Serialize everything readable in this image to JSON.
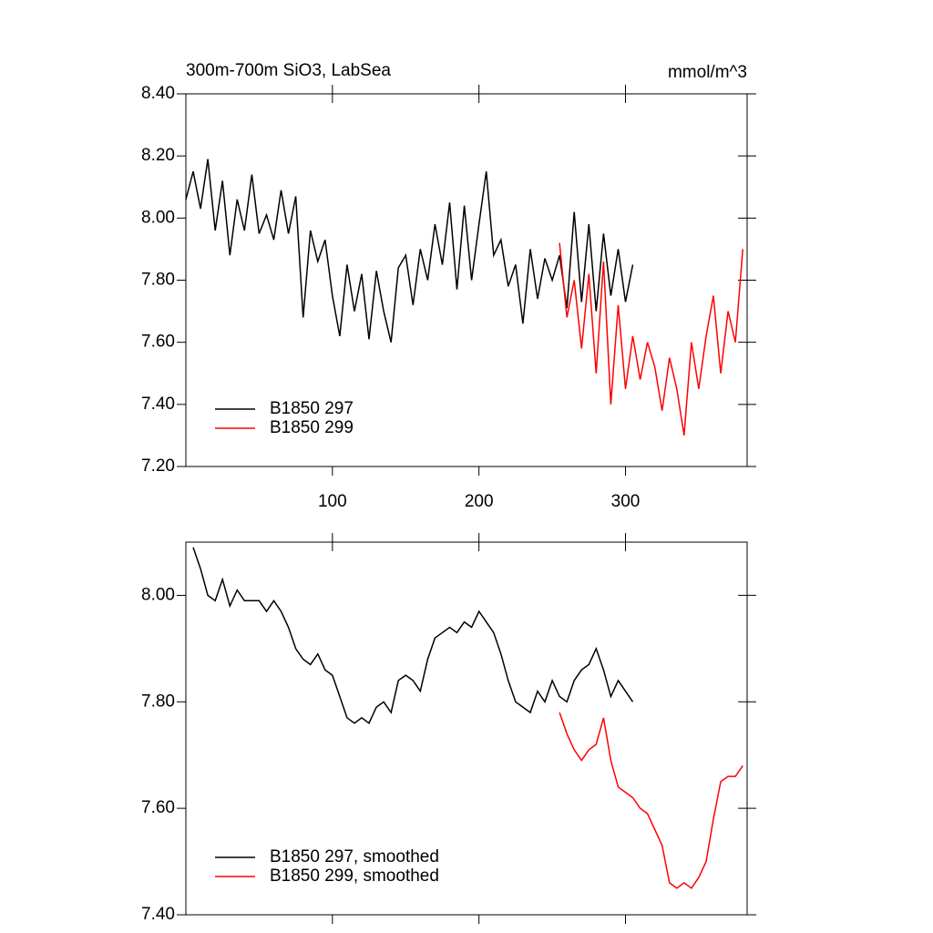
{
  "chart_data": [
    {
      "type": "line",
      "title": "300m-700m SiO3, LabSea",
      "units": "mmol/m^3",
      "x": [
        0,
        5,
        10,
        15,
        20,
        25,
        30,
        35,
        40,
        45,
        50,
        55,
        60,
        65,
        70,
        75,
        80,
        85,
        90,
        95,
        100,
        105,
        110,
        115,
        120,
        125,
        130,
        135,
        140,
        145,
        150,
        155,
        160,
        165,
        170,
        175,
        180,
        185,
        190,
        195,
        200,
        205,
        210,
        215,
        220,
        225,
        230,
        235,
        240,
        245,
        250,
        255,
        260,
        265,
        270,
        275,
        280,
        285,
        290,
        295,
        300,
        305,
        310,
        315,
        320,
        325,
        330,
        335,
        340,
        345,
        350,
        355,
        360,
        365,
        370,
        375,
        380
      ],
      "series": [
        {
          "name": "B1850 297",
          "color": "#000000",
          "values": [
            8.06,
            8.15,
            8.03,
            8.19,
            7.96,
            8.12,
            7.88,
            8.06,
            7.96,
            8.14,
            7.95,
            8.01,
            7.93,
            8.09,
            7.95,
            8.07,
            7.68,
            7.96,
            7.86,
            7.93,
            7.75,
            7.62,
            7.85,
            7.7,
            7.82,
            7.61,
            7.83,
            7.7,
            7.6,
            7.84,
            7.88,
            7.72,
            7.9,
            7.8,
            7.98,
            7.85,
            8.05,
            7.77,
            8.04,
            7.8,
            7.98,
            8.15,
            7.88,
            7.93,
            7.78,
            7.85,
            7.66,
            7.9,
            7.74,
            7.87,
            7.8,
            7.88,
            7.71,
            8.02,
            7.73,
            7.98,
            7.7,
            7.95,
            7.75,
            7.9,
            7.73,
            7.85,
            null,
            null,
            null,
            null,
            null,
            null,
            null,
            null,
            null,
            null,
            null,
            null,
            null,
            null,
            null
          ]
        },
        {
          "name": "B1850 299",
          "color": "#ff0000",
          "values": [
            null,
            null,
            null,
            null,
            null,
            null,
            null,
            null,
            null,
            null,
            null,
            null,
            null,
            null,
            null,
            null,
            null,
            null,
            null,
            null,
            null,
            null,
            null,
            null,
            null,
            null,
            null,
            null,
            null,
            null,
            null,
            null,
            null,
            null,
            null,
            null,
            null,
            null,
            null,
            null,
            null,
            null,
            null,
            null,
            null,
            null,
            null,
            null,
            null,
            null,
            null,
            7.92,
            7.68,
            7.8,
            7.58,
            7.82,
            7.5,
            7.86,
            7.4,
            7.72,
            7.45,
            7.62,
            7.48,
            7.6,
            7.52,
            7.38,
            7.55,
            7.45,
            7.3,
            7.6,
            7.45,
            7.62,
            7.75,
            7.5,
            7.7,
            7.6,
            7.9
          ]
        }
      ],
      "xlim": [
        0,
        383
      ],
      "xticks": [
        100,
        200,
        300
      ],
      "xtick_labels": true,
      "ylim": [
        7.2,
        8.4
      ],
      "yticks": [
        {
          "value": 7.2,
          "label": "7.20"
        },
        {
          "value": 7.4,
          "label": "7.40"
        },
        {
          "value": 7.6,
          "label": "7.60"
        },
        {
          "value": 7.8,
          "label": "7.80"
        },
        {
          "value": 8.0,
          "label": "8.00"
        },
        {
          "value": 8.2,
          "label": "8.20"
        },
        {
          "value": 8.4,
          "label": "8.40"
        }
      ],
      "legend": "lower left"
    },
    {
      "type": "line",
      "x": [
        0,
        5,
        10,
        15,
        20,
        25,
        30,
        35,
        40,
        45,
        50,
        55,
        60,
        65,
        70,
        75,
        80,
        85,
        90,
        95,
        100,
        105,
        110,
        115,
        120,
        125,
        130,
        135,
        140,
        145,
        150,
        155,
        160,
        165,
        170,
        175,
        180,
        185,
        190,
        195,
        200,
        205,
        210,
        215,
        220,
        225,
        230,
        235,
        240,
        245,
        250,
        255,
        260,
        265,
        270,
        275,
        280,
        285,
        290,
        295,
        300,
        305,
        310,
        315,
        320,
        325,
        330,
        335,
        340,
        345,
        350,
        355,
        360,
        365,
        370,
        375,
        380
      ],
      "series": [
        {
          "name": "B1850 297, smoothed",
          "color": "#000000",
          "values": [
            null,
            8.09,
            8.05,
            8.0,
            7.99,
            8.03,
            7.98,
            8.01,
            7.99,
            7.99,
            7.99,
            7.97,
            7.99,
            7.97,
            7.94,
            7.9,
            7.88,
            7.87,
            7.89,
            7.86,
            7.85,
            7.81,
            7.77,
            7.76,
            7.77,
            7.76,
            7.79,
            7.8,
            7.78,
            7.84,
            7.85,
            7.84,
            7.82,
            7.88,
            7.92,
            7.93,
            7.94,
            7.93,
            7.95,
            7.94,
            7.97,
            7.95,
            7.93,
            7.89,
            7.84,
            7.8,
            7.79,
            7.78,
            7.82,
            7.8,
            7.84,
            7.81,
            7.8,
            7.84,
            7.86,
            7.87,
            7.9,
            7.86,
            7.81,
            7.84,
            7.82,
            7.8,
            null,
            null,
            null,
            null,
            null,
            null,
            null,
            null,
            null,
            null,
            null,
            null,
            null,
            null,
            null
          ]
        },
        {
          "name": "B1850 299, smoothed",
          "color": "#ff0000",
          "values": [
            null,
            null,
            null,
            null,
            null,
            null,
            null,
            null,
            null,
            null,
            null,
            null,
            null,
            null,
            null,
            null,
            null,
            null,
            null,
            null,
            null,
            null,
            null,
            null,
            null,
            null,
            null,
            null,
            null,
            null,
            null,
            null,
            null,
            null,
            null,
            null,
            null,
            null,
            null,
            null,
            null,
            null,
            null,
            null,
            null,
            null,
            null,
            null,
            null,
            null,
            null,
            7.78,
            7.74,
            7.71,
            7.69,
            7.71,
            7.72,
            7.77,
            7.69,
            7.64,
            7.63,
            7.62,
            7.6,
            7.59,
            7.56,
            7.53,
            7.46,
            7.45,
            7.46,
            7.45,
            7.47,
            7.5,
            7.58,
            7.65,
            7.66,
            7.66,
            7.68
          ]
        }
      ],
      "xlim": [
        0,
        383
      ],
      "xticks": [
        100,
        200,
        300
      ],
      "xtick_labels": false,
      "ylim": [
        7.4,
        8.1
      ],
      "yticks": [
        {
          "value": 7.4,
          "label": "7.40"
        },
        {
          "value": 7.6,
          "label": "7.60"
        },
        {
          "value": 7.8,
          "label": "7.80"
        },
        {
          "value": 8.0,
          "label": "8.00"
        }
      ],
      "legend": "lower left"
    }
  ]
}
